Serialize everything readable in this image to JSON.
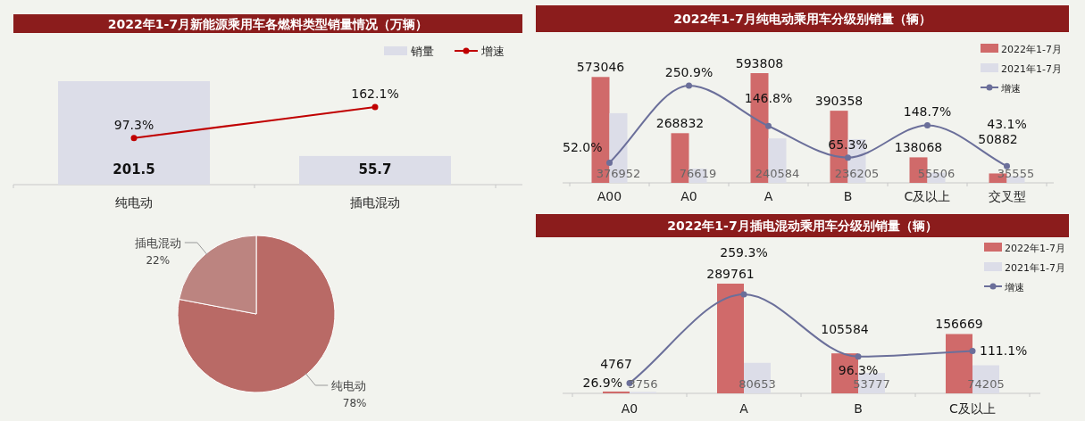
{
  "chart_data": [
    {
      "type": "bar",
      "title": "2022年1-7月新能源乘用车各燃料类型销量情况（万辆）",
      "categories": [
        "纯电动",
        "插电混动"
      ],
      "legend": "top right",
      "marker": "circle",
      "series": [
        {
          "name": "销量",
          "color": "#dcdde8",
          "values": [
            201.5,
            55.7
          ],
          "value_labels": [
            "201.5",
            "55.7"
          ]
        },
        {
          "name": "增速",
          "type": "line",
          "axis": "y2",
          "color": "#c00000",
          "values": [
            97.3,
            162.1
          ],
          "value_labels": [
            "97.3%",
            "162.1%"
          ]
        }
      ]
    },
    {
      "type": "pie",
      "categories": [
        "纯电动",
        "插电混动"
      ],
      "values": [
        78,
        22
      ],
      "colors": [
        "#b96a66",
        "#bc8480"
      ],
      "value_labels": [
        "78%",
        "22%"
      ]
    },
    {
      "type": "bar",
      "title": "2022年1-7月纯电动乘用车分级别销量（辆）",
      "categories": [
        "A00",
        "A0",
        "A",
        "B",
        "C及以上",
        "交叉型"
      ],
      "legend": "top right",
      "marker": "circle",
      "series": [
        {
          "name": "2022年1-7月",
          "color": "#d06a6a",
          "values": [
            573046,
            268832,
            593808,
            390358,
            138068,
            50882
          ],
          "value_labels": [
            "573046",
            "268832",
            "593808",
            "390358",
            "138068",
            "50882"
          ]
        },
        {
          "name": "2021年1-7月",
          "color": "#dcdde8",
          "values": [
            376952,
            76619,
            240584,
            236205,
            55506,
            35555
          ],
          "value_labels": [
            "376952",
            "76619",
            "240584",
            "236205",
            "55506",
            "35555"
          ]
        },
        {
          "name": "增速",
          "type": "line",
          "axis": "y2",
          "color": "#6b6f9a",
          "values": [
            52.0,
            250.9,
            146.8,
            65.3,
            148.7,
            43.1
          ],
          "value_labels": [
            "52.0%",
            "250.9%",
            "146.8%",
            "65.3%",
            "148.7%",
            "43.1%"
          ]
        }
      ]
    },
    {
      "type": "bar",
      "title": "2022年1-7月插电混动乘用车分级别销量（辆）",
      "categories": [
        "A0",
        "A",
        "B",
        "C及以上"
      ],
      "legend": "top right",
      "marker": "circle",
      "series": [
        {
          "name": "2022年1-7月",
          "color": "#d06a6a",
          "values": [
            4767,
            289761,
            105584,
            156669
          ],
          "value_labels": [
            "4767",
            "289761",
            "105584",
            "156669"
          ]
        },
        {
          "name": "2021年1-7月",
          "color": "#dcdde8",
          "values": [
            3756,
            80653,
            53777,
            74205
          ],
          "value_labels": [
            "3756",
            "80653",
            "53777",
            "74205"
          ]
        },
        {
          "name": "增速",
          "type": "line",
          "axis": "y2",
          "color": "#6b6f9a",
          "values": [
            26.9,
            259.3,
            96.3,
            111.1
          ],
          "value_labels": [
            "26.9%",
            "259.3%",
            "96.3%",
            "111.1%"
          ]
        }
      ]
    }
  ]
}
